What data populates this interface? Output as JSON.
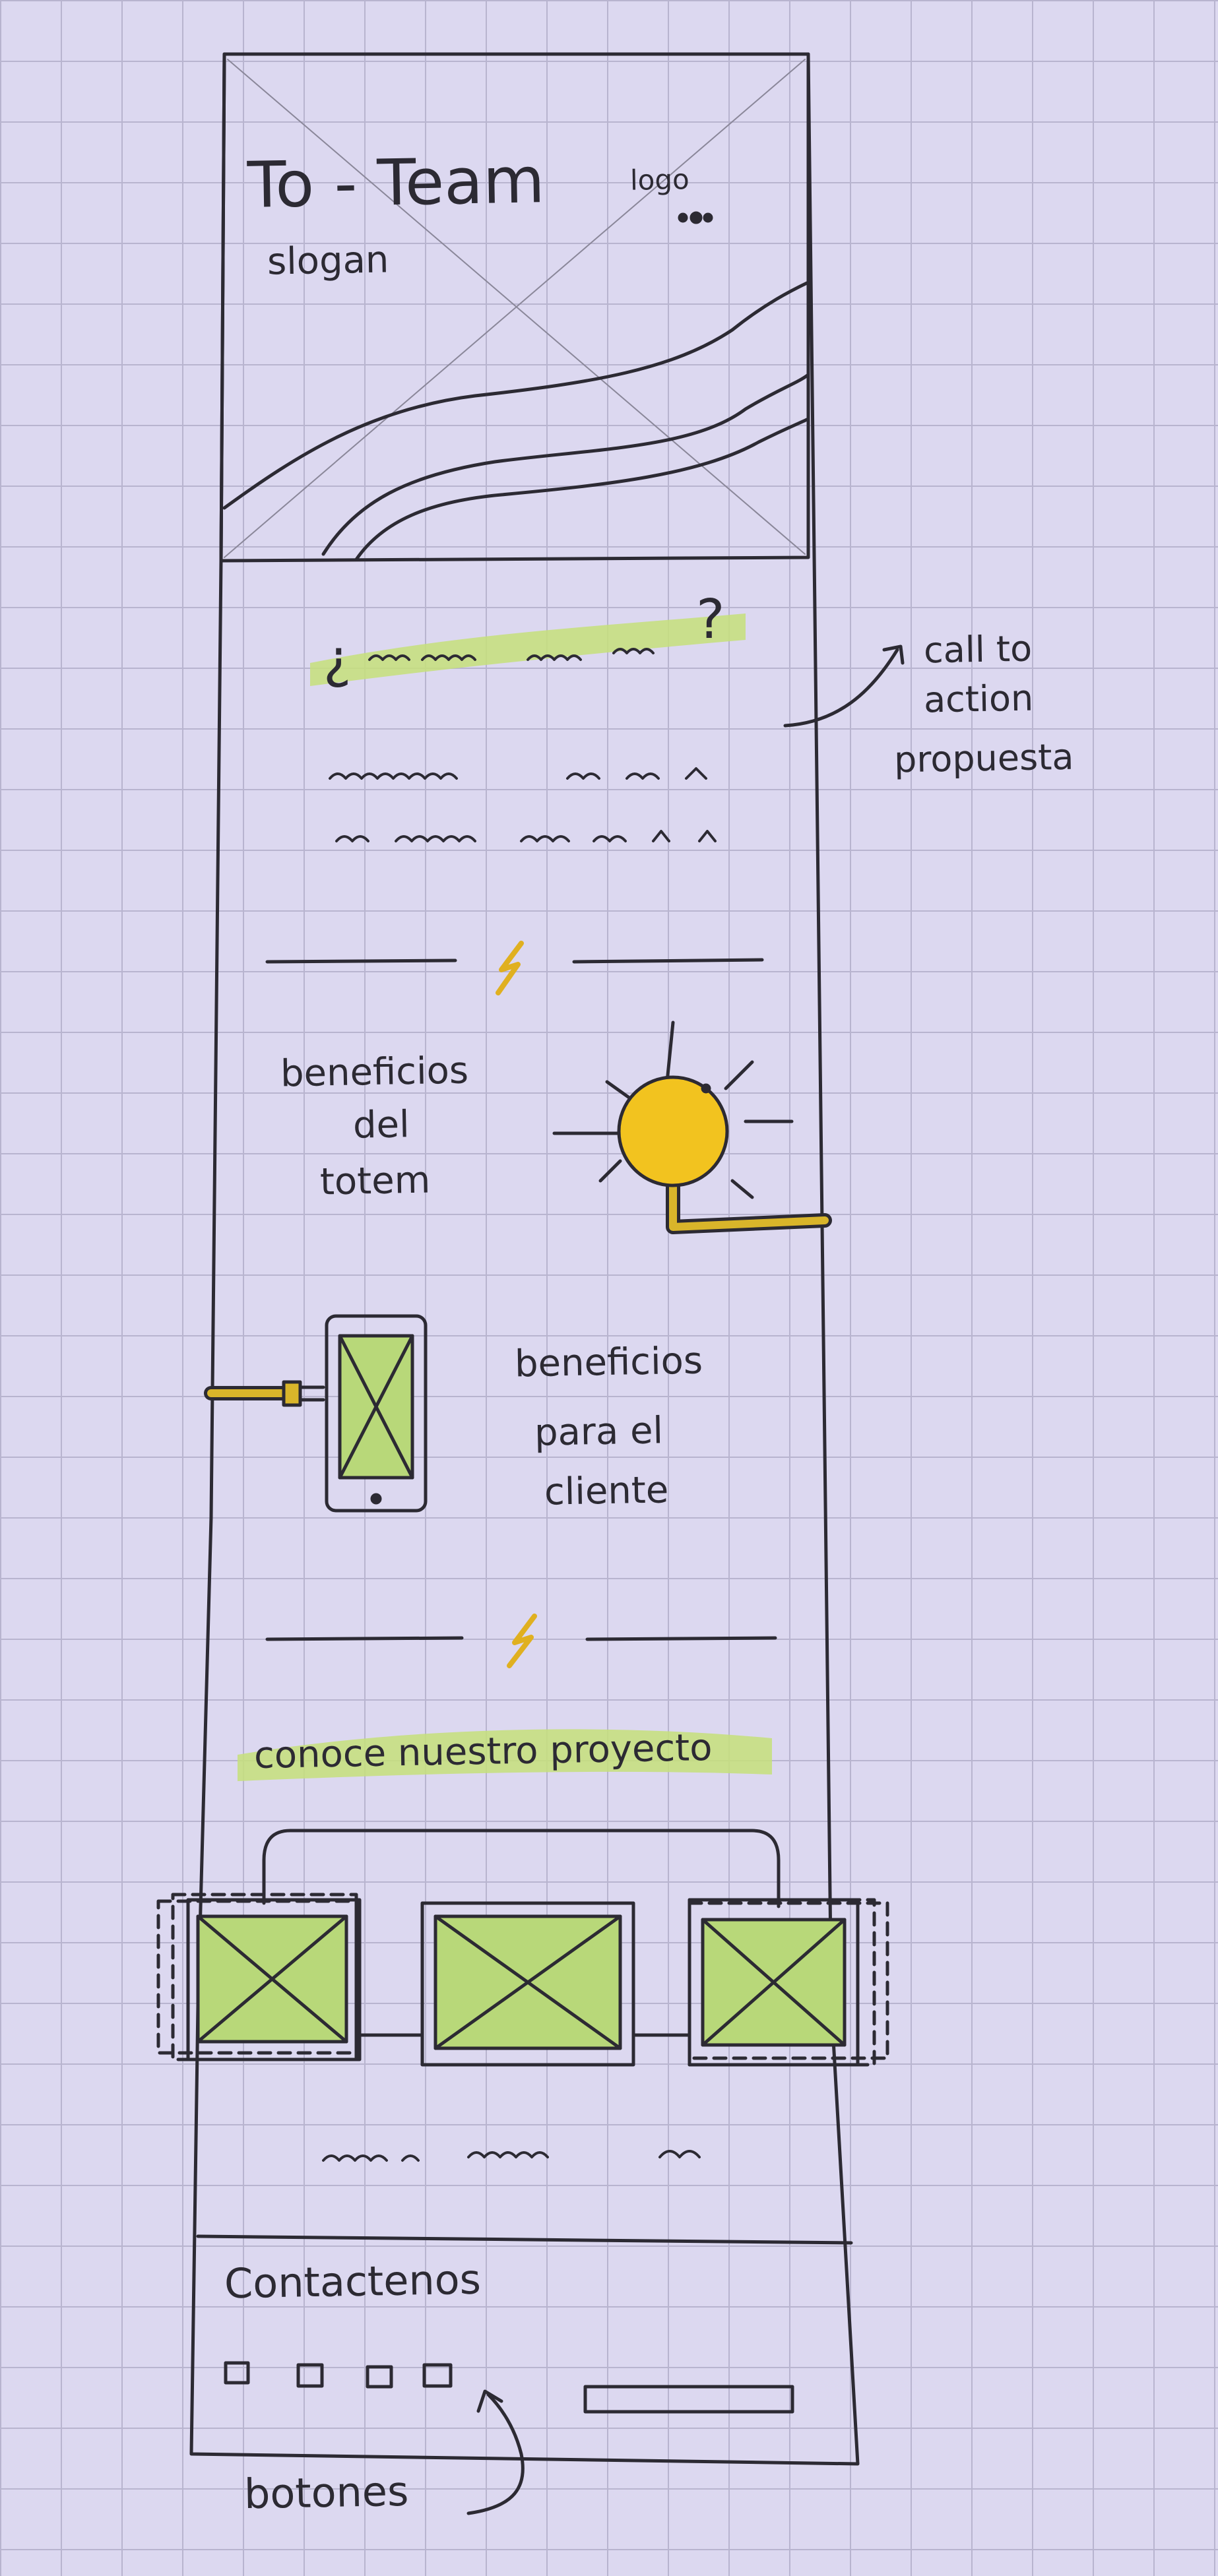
{
  "header": {
    "title": "To - Team",
    "logo_label": "logo",
    "slogan": "slogan"
  },
  "cta": {
    "question_open": "¿",
    "question_close": "?"
  },
  "annotations": {
    "cta": [
      "call to",
      "action",
      "propuesta"
    ],
    "buttons": "botones"
  },
  "sections": {
    "totem_benefits": [
      "beneficios",
      "del",
      "totem"
    ],
    "client_benefits": [
      "beneficios",
      "para el",
      "cliente"
    ],
    "project": "conoce nuestro proyecto",
    "contact": "Contactenos"
  },
  "colors": {
    "highlight": "#c5e07a",
    "sun": "#f2c31f",
    "cable": "#d9b52a",
    "ink": "#2c2a33",
    "screen": "#b8d879",
    "paper": "#dcd8f0"
  }
}
